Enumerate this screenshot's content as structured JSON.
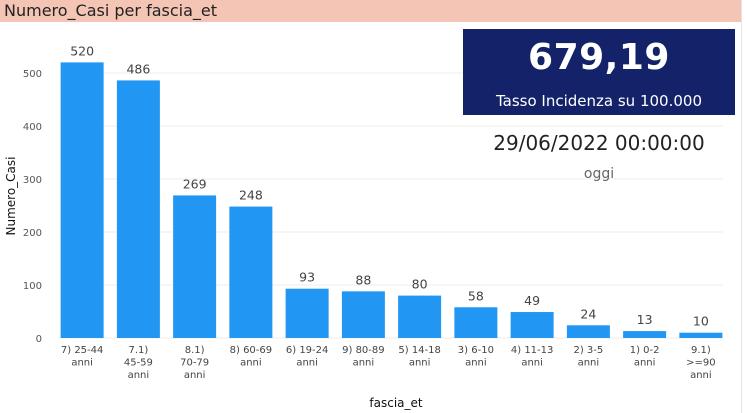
{
  "header": {
    "title": "Numero_Casi per fascia_et"
  },
  "kpi": {
    "value": "679,19",
    "label": "Tasso Incidenza su 100.000",
    "date": "29/06/2022 00:00:00",
    "date_caption": "oggi"
  },
  "colors": {
    "bar": "#2196f3",
    "kpi_bg": "#142269",
    "header_bg": "#f4c4b4"
  },
  "chart_data": {
    "type": "bar",
    "title": "Numero_Casi per fascia_et",
    "xlabel": "fascia_et",
    "ylabel": "Numero_Casi",
    "ylim": [
      0,
      560
    ],
    "yticks": [
      0,
      100,
      200,
      300,
      400,
      500
    ],
    "categories": [
      [
        "7) 25-44",
        "anni"
      ],
      [
        "7.1)",
        "45-59",
        "anni"
      ],
      [
        "8.1)",
        "70-79",
        "anni"
      ],
      [
        "8) 60-69",
        "anni"
      ],
      [
        "6) 19-24",
        "anni"
      ],
      [
        "9) 80-89",
        "anni"
      ],
      [
        "5) 14-18",
        "anni"
      ],
      [
        "3) 6-10",
        "anni"
      ],
      [
        "4) 11-13",
        "anni"
      ],
      [
        "2) 3-5",
        "anni"
      ],
      [
        "1) 0-2",
        "anni"
      ],
      [
        "9.1)",
        ">=90",
        "anni"
      ]
    ],
    "values": [
      520,
      486,
      269,
      248,
      93,
      88,
      80,
      58,
      49,
      24,
      13,
      10
    ],
    "grid": true,
    "legend": "none"
  }
}
